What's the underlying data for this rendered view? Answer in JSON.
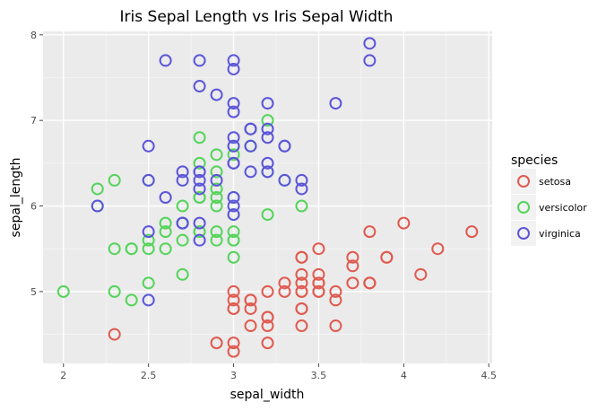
{
  "chart_data": {
    "type": "scatter",
    "title": "Iris Sepal Length vs Iris Sepal Width",
    "xlabel": "sepal_width",
    "ylabel": "sepal_length",
    "xlim": [
      1.88,
      4.52
    ],
    "ylim": [
      4.16,
      8.04
    ],
    "x_ticks": [
      2,
      2.5,
      3,
      3.5,
      4,
      4.5
    ],
    "x_tick_labels": [
      "2",
      "2.5",
      "3",
      "3.5",
      "4",
      "4.5"
    ],
    "y_ticks": [
      5,
      6,
      7,
      8
    ],
    "y_tick_labels": [
      "5",
      "6",
      "7",
      "8"
    ],
    "grid": true,
    "legend": {
      "title": "species",
      "position": "right"
    },
    "series": [
      {
        "name": "setosa",
        "color": "#e05a4f",
        "points": [
          [
            3.5,
            5.1
          ],
          [
            3.0,
            4.9
          ],
          [
            3.2,
            4.7
          ],
          [
            3.1,
            4.6
          ],
          [
            3.6,
            5.0
          ],
          [
            3.9,
            5.4
          ],
          [
            3.4,
            4.6
          ],
          [
            3.4,
            5.0
          ],
          [
            2.9,
            4.4
          ],
          [
            3.1,
            4.9
          ],
          [
            3.7,
            5.4
          ],
          [
            3.4,
            4.8
          ],
          [
            3.0,
            4.8
          ],
          [
            3.0,
            4.3
          ],
          [
            4.0,
            5.8
          ],
          [
            4.4,
            5.7
          ],
          [
            3.9,
            5.4
          ],
          [
            3.5,
            5.1
          ],
          [
            3.8,
            5.7
          ],
          [
            3.8,
            5.1
          ],
          [
            3.4,
            5.4
          ],
          [
            3.7,
            5.1
          ],
          [
            3.6,
            4.6
          ],
          [
            3.3,
            5.1
          ],
          [
            3.4,
            4.8
          ],
          [
            3.0,
            5.0
          ],
          [
            3.4,
            5.0
          ],
          [
            3.5,
            5.2
          ],
          [
            3.4,
            5.2
          ],
          [
            3.2,
            4.7
          ],
          [
            3.1,
            4.8
          ],
          [
            3.4,
            5.4
          ],
          [
            4.1,
            5.2
          ],
          [
            4.2,
            5.5
          ],
          [
            3.1,
            4.9
          ],
          [
            3.2,
            5.0
          ],
          [
            3.5,
            5.5
          ],
          [
            3.6,
            4.9
          ],
          [
            3.0,
            4.4
          ],
          [
            3.4,
            5.1
          ],
          [
            3.5,
            5.0
          ],
          [
            2.3,
            4.5
          ],
          [
            3.2,
            4.4
          ],
          [
            3.5,
            5.0
          ],
          [
            3.8,
            5.1
          ],
          [
            3.0,
            4.8
          ],
          [
            3.8,
            5.1
          ],
          [
            3.2,
            4.6
          ],
          [
            3.7,
            5.3
          ],
          [
            3.3,
            5.0
          ]
        ]
      },
      {
        "name": "versicolor",
        "color": "#54d45a",
        "points": [
          [
            3.2,
            7.0
          ],
          [
            3.2,
            6.4
          ],
          [
            3.1,
            6.9
          ],
          [
            2.3,
            5.5
          ],
          [
            2.8,
            6.5
          ],
          [
            2.8,
            5.7
          ],
          [
            3.3,
            6.3
          ],
          [
            2.4,
            4.9
          ],
          [
            2.9,
            6.6
          ],
          [
            2.7,
            5.2
          ],
          [
            2.0,
            5.0
          ],
          [
            3.0,
            5.9
          ],
          [
            2.2,
            6.0
          ],
          [
            2.9,
            6.1
          ],
          [
            2.9,
            5.6
          ],
          [
            3.1,
            6.7
          ],
          [
            3.0,
            5.6
          ],
          [
            2.7,
            5.8
          ],
          [
            2.2,
            6.2
          ],
          [
            2.5,
            5.6
          ],
          [
            3.2,
            5.9
          ],
          [
            2.8,
            6.1
          ],
          [
            2.5,
            6.3
          ],
          [
            2.8,
            6.1
          ],
          [
            2.9,
            6.4
          ],
          [
            3.0,
            6.6
          ],
          [
            2.8,
            6.8
          ],
          [
            3.0,
            6.7
          ],
          [
            2.9,
            6.0
          ],
          [
            2.6,
            5.7
          ],
          [
            2.4,
            5.5
          ],
          [
            2.4,
            5.5
          ],
          [
            2.7,
            5.8
          ],
          [
            2.7,
            6.0
          ],
          [
            3.0,
            5.4
          ],
          [
            3.4,
            6.0
          ],
          [
            3.1,
            6.7
          ],
          [
            2.3,
            6.3
          ],
          [
            3.0,
            5.6
          ],
          [
            2.5,
            5.5
          ],
          [
            2.6,
            5.5
          ],
          [
            3.0,
            6.1
          ],
          [
            2.6,
            5.8
          ],
          [
            2.3,
            5.0
          ],
          [
            2.7,
            5.6
          ],
          [
            3.0,
            5.7
          ],
          [
            2.9,
            5.7
          ],
          [
            2.9,
            6.2
          ],
          [
            2.5,
            5.1
          ],
          [
            2.8,
            5.7
          ]
        ]
      },
      {
        "name": "virginica",
        "color": "#5b55d9",
        "points": [
          [
            3.3,
            6.3
          ],
          [
            2.7,
            5.8
          ],
          [
            3.0,
            7.1
          ],
          [
            2.9,
            6.3
          ],
          [
            3.0,
            6.5
          ],
          [
            3.0,
            7.6
          ],
          [
            2.5,
            4.9
          ],
          [
            2.9,
            7.3
          ],
          [
            2.5,
            6.7
          ],
          [
            3.6,
            7.2
          ],
          [
            3.2,
            6.5
          ],
          [
            2.7,
            6.4
          ],
          [
            3.0,
            6.8
          ],
          [
            2.5,
            5.7
          ],
          [
            2.8,
            5.8
          ],
          [
            3.2,
            6.4
          ],
          [
            3.0,
            6.5
          ],
          [
            3.8,
            7.7
          ],
          [
            2.6,
            7.7
          ],
          [
            2.2,
            6.0
          ],
          [
            3.2,
            6.9
          ],
          [
            2.8,
            5.6
          ],
          [
            2.8,
            7.7
          ],
          [
            2.7,
            6.3
          ],
          [
            3.3,
            6.7
          ],
          [
            3.2,
            7.2
          ],
          [
            2.8,
            6.2
          ],
          [
            3.0,
            6.1
          ],
          [
            2.8,
            6.4
          ],
          [
            3.0,
            7.2
          ],
          [
            2.8,
            7.4
          ],
          [
            3.8,
            7.9
          ],
          [
            2.8,
            6.4
          ],
          [
            2.8,
            6.3
          ],
          [
            2.6,
            6.1
          ],
          [
            3.0,
            7.7
          ],
          [
            3.4,
            6.3
          ],
          [
            3.1,
            6.4
          ],
          [
            3.0,
            6.0
          ],
          [
            3.1,
            6.9
          ],
          [
            3.1,
            6.7
          ],
          [
            3.1,
            6.9
          ],
          [
            2.7,
            5.8
          ],
          [
            3.2,
            6.8
          ],
          [
            3.3,
            6.7
          ],
          [
            3.0,
            6.7
          ],
          [
            2.5,
            6.3
          ],
          [
            3.0,
            6.5
          ],
          [
            3.4,
            6.2
          ],
          [
            3.0,
            5.9
          ]
        ]
      }
    ]
  }
}
